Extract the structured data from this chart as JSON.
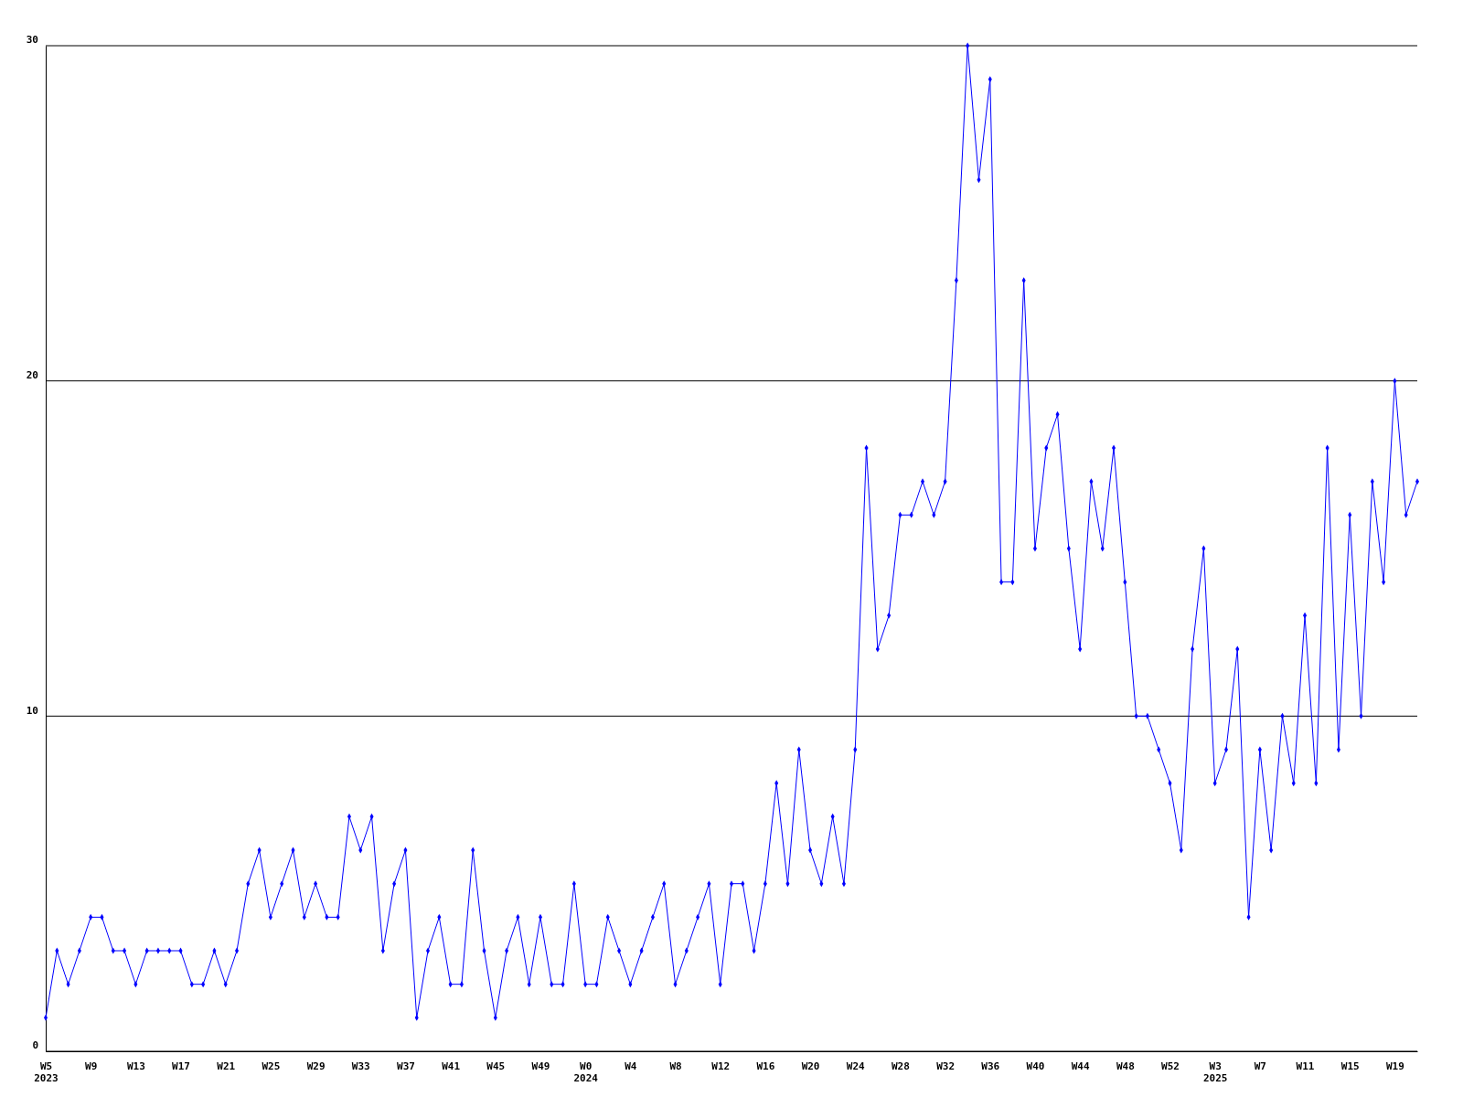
{
  "chart_data": {
    "type": "line",
    "categories": [
      "W5\n2023",
      null,
      null,
      null,
      "W9",
      null,
      null,
      null,
      "W13",
      null,
      null,
      null,
      "W17",
      null,
      null,
      null,
      "W21",
      null,
      null,
      null,
      "W25",
      null,
      null,
      null,
      "W29",
      null,
      null,
      null,
      "W33",
      null,
      null,
      null,
      "W37",
      null,
      null,
      null,
      "W41",
      null,
      null,
      null,
      "W45",
      null,
      null,
      null,
      "W49",
      null,
      null,
      null,
      "W0\n2024",
      null,
      null,
      null,
      "W4",
      null,
      null,
      null,
      "W8",
      null,
      null,
      null,
      "W12",
      null,
      null,
      null,
      "W16",
      null,
      null,
      null,
      "W20",
      null,
      null,
      null,
      "W24",
      null,
      null,
      null,
      "W28",
      null,
      null,
      null,
      "W32",
      null,
      null,
      null,
      "W36",
      null,
      null,
      null,
      "W40",
      null,
      null,
      null,
      "W44",
      null,
      null,
      null,
      "W48",
      null,
      null,
      null,
      "W52",
      null,
      null,
      null,
      "W3\n2025",
      null,
      null,
      null,
      "W7",
      null,
      null,
      null,
      "W11",
      null,
      null,
      null,
      "W15",
      null,
      null,
      null,
      "W19",
      null,
      null
    ],
    "series": [
      {
        "color": "#0000ff",
        "values": [
          1,
          3,
          2,
          3,
          4,
          4,
          3,
          3,
          2,
          3,
          3,
          3,
          3,
          2,
          2,
          3,
          2,
          3,
          5,
          6,
          4,
          5,
          6,
          4,
          5,
          4,
          4,
          7,
          6,
          7,
          3,
          5,
          6,
          1,
          3,
          4,
          2,
          2,
          6,
          3,
          1,
          3,
          4,
          2,
          4,
          2,
          2,
          5,
          2,
          2,
          4,
          3,
          2,
          3,
          4,
          5,
          2,
          3,
          4,
          5,
          2,
          5,
          5,
          3,
          5,
          8,
          5,
          9,
          6,
          5,
          7,
          5,
          9,
          18,
          12,
          13,
          16,
          16,
          17,
          16,
          17,
          23,
          30,
          26,
          29,
          14,
          14,
          23,
          15,
          18,
          19,
          15,
          12,
          17,
          15,
          18,
          14,
          10,
          10,
          9,
          8,
          6,
          12,
          15,
          8,
          9,
          12,
          4,
          9,
          6,
          10,
          8,
          13,
          8,
          18,
          9,
          16,
          10,
          17,
          14,
          20,
          16,
          17
        ]
      }
    ],
    "ylim": [
      0,
      30
    ],
    "yticks": [
      0,
      10,
      20,
      30
    ],
    "grid": "y",
    "marker": "diamond",
    "line_style": "solid"
  }
}
